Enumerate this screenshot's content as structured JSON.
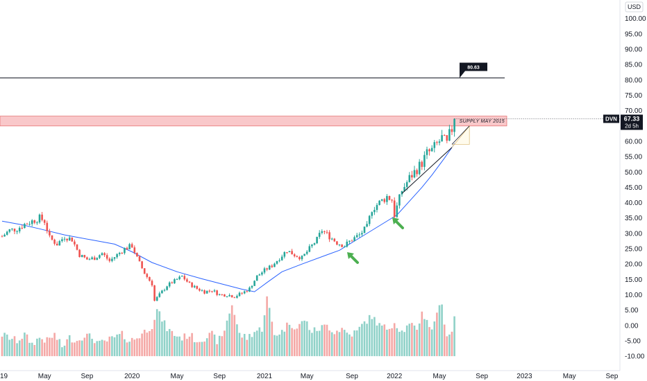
{
  "chart_data": {
    "type": "candlestick",
    "symbol": "DVN",
    "currency": "USD",
    "last_price": "67.33",
    "countdown": "2d 5h",
    "ylim": [
      -12,
      104
    ],
    "yticks": [
      "100.00",
      "95.00",
      "90.00",
      "85.00",
      "80.00",
      "75.00",
      "70.00",
      "65.00",
      "60.00",
      "55.00",
      "50.00",
      "45.00",
      "40.00",
      "35.00",
      "30.00",
      "25.00",
      "20.00",
      "15.00",
      "10.00",
      "5.00",
      "0.00",
      "-5.00",
      "-10.00"
    ],
    "ytick_values": [
      100,
      95,
      90,
      85,
      80,
      75,
      70,
      65,
      60,
      55,
      50,
      45,
      40,
      35,
      30,
      25,
      20,
      15,
      10,
      5,
      0,
      -5,
      -10
    ],
    "xticks": [
      {
        "label": "19",
        "week": 0
      },
      {
        "label": "May",
        "week": 17
      },
      {
        "label": "Sep",
        "week": 34
      },
      {
        "label": "2020",
        "week": 52
      },
      {
        "label": "May",
        "week": 70
      },
      {
        "label": "Sep",
        "week": 87
      },
      {
        "label": "2021",
        "week": 105
      },
      {
        "label": "May",
        "week": 122
      },
      {
        "label": "Sep",
        "week": 140
      },
      {
        "label": "2022",
        "week": 157
      },
      {
        "label": "May",
        "week": 175
      },
      {
        "label": "Sep",
        "week": 192
      },
      {
        "label": "2023",
        "week": 209
      },
      {
        "label": "May",
        "week": 227
      },
      {
        "label": "Sep",
        "week": 244
      }
    ],
    "resistance": {
      "price": 80.63,
      "label": "80.63"
    },
    "supply_zone": {
      "low": 65,
      "high": 68.2,
      "label": "SUPPLY MAY 2015"
    },
    "moving_average": [
      [
        0,
        34
      ],
      [
        8,
        32.8
      ],
      [
        15,
        31.5
      ],
      [
        25,
        29.5
      ],
      [
        35,
        28
      ],
      [
        45,
        26.5
      ],
      [
        52,
        24
      ],
      [
        60,
        20.5
      ],
      [
        70,
        17.5
      ],
      [
        80,
        15.2
      ],
      [
        88,
        13.5
      ],
      [
        96,
        11.8
      ],
      [
        101,
        11
      ],
      [
        106,
        14
      ],
      [
        112,
        17.5
      ],
      [
        120,
        20
      ],
      [
        130,
        23
      ],
      [
        135,
        24.5
      ],
      [
        140,
        27
      ],
      [
        148,
        31
      ],
      [
        155,
        34.5
      ],
      [
        158,
        36
      ],
      [
        163,
        40.5
      ],
      [
        168,
        45
      ],
      [
        172,
        49
      ],
      [
        177,
        54.5
      ],
      [
        180,
        58
      ],
      [
        181,
        59.3
      ]
    ],
    "price_path": [
      [
        0,
        29
      ],
      [
        3,
        31
      ],
      [
        6,
        31.5
      ],
      [
        9,
        33
      ],
      [
        12,
        34
      ],
      [
        15,
        35
      ],
      [
        17,
        34
      ],
      [
        19,
        28.5
      ],
      [
        22,
        26.5
      ],
      [
        25,
        29
      ],
      [
        28,
        28
      ],
      [
        31,
        23
      ],
      [
        34,
        21.5
      ],
      [
        37,
        22
      ],
      [
        40,
        23.5
      ],
      [
        43,
        21
      ],
      [
        46,
        23
      ],
      [
        49,
        25
      ],
      [
        52,
        26
      ],
      [
        54,
        22
      ],
      [
        57,
        17
      ],
      [
        60,
        13.5
      ],
      [
        61,
        8
      ],
      [
        63,
        10
      ],
      [
        66,
        13
      ],
      [
        69,
        14.5
      ],
      [
        72,
        16
      ],
      [
        75,
        13.5
      ],
      [
        78,
        12
      ],
      [
        81,
        11
      ],
      [
        84,
        11.5
      ],
      [
        87,
        10
      ],
      [
        90,
        10
      ],
      [
        93,
        9.5
      ],
      [
        96,
        10.5
      ],
      [
        99,
        12
      ],
      [
        102,
        16
      ],
      [
        105,
        18
      ],
      [
        108,
        19.5
      ],
      [
        111,
        22
      ],
      [
        114,
        24.5
      ],
      [
        117,
        23
      ],
      [
        120,
        22
      ],
      [
        123,
        25
      ],
      [
        126,
        28
      ],
      [
        128,
        31
      ],
      [
        131,
        29
      ],
      [
        134,
        27
      ],
      [
        137,
        26
      ],
      [
        140,
        28
      ],
      [
        143,
        29.5
      ],
      [
        146,
        32
      ],
      [
        148,
        38
      ],
      [
        151,
        40
      ],
      [
        154,
        42
      ],
      [
        156,
        41
      ],
      [
        157,
        36
      ],
      [
        160,
        44
      ],
      [
        163,
        48
      ],
      [
        166,
        51
      ],
      [
        168,
        53
      ],
      [
        170,
        56
      ],
      [
        172,
        57
      ],
      [
        174,
        59
      ],
      [
        176,
        61
      ],
      [
        178,
        59
      ],
      [
        179,
        62
      ],
      [
        180,
        64
      ],
      [
        181,
        67.33
      ]
    ],
    "volume_baseline": -10,
    "volume": [
      {
        "w": 0,
        "v": -3
      },
      {
        "w": 3,
        "v": -4
      },
      {
        "w": 6,
        "v": -5
      },
      {
        "w": 9,
        "v": -3
      },
      {
        "w": 12,
        "v": -6
      },
      {
        "w": 15,
        "v": -4
      },
      {
        "w": 18,
        "v": -5
      },
      {
        "w": 21,
        "v": -3
      },
      {
        "w": 24,
        "v": -7
      },
      {
        "w": 27,
        "v": -4
      },
      {
        "w": 30,
        "v": -5
      },
      {
        "w": 33,
        "v": -3
      },
      {
        "w": 36,
        "v": -4
      },
      {
        "w": 39,
        "v": -6
      },
      {
        "w": 42,
        "v": -5
      },
      {
        "w": 45,
        "v": -4
      },
      {
        "w": 48,
        "v": -3
      },
      {
        "w": 51,
        "v": -5
      },
      {
        "w": 54,
        "v": -4
      },
      {
        "w": 57,
        "v": -2
      },
      {
        "w": 60,
        "v": 0
      },
      {
        "w": 62,
        "v": 5
      },
      {
        "w": 64,
        "v": 2
      },
      {
        "w": 66,
        "v": -1
      },
      {
        "w": 69,
        "v": -3
      },
      {
        "w": 72,
        "v": -4
      },
      {
        "w": 75,
        "v": -3
      },
      {
        "w": 78,
        "v": -5
      },
      {
        "w": 81,
        "v": -4
      },
      {
        "w": 84,
        "v": -3
      },
      {
        "w": 86,
        "v": -5
      },
      {
        "w": 88,
        "v": -4
      },
      {
        "w": 92,
        "v": 7
      },
      {
        "w": 95,
        "v": -3
      },
      {
        "w": 98,
        "v": -4
      },
      {
        "w": 101,
        "v": -2
      },
      {
        "w": 104,
        "v": -1
      },
      {
        "w": 106,
        "v": 9
      },
      {
        "w": 109,
        "v": -3
      },
      {
        "w": 112,
        "v": -2
      },
      {
        "w": 115,
        "v": 1
      },
      {
        "w": 118,
        "v": -1
      },
      {
        "w": 121,
        "v": 2
      },
      {
        "w": 124,
        "v": -2
      },
      {
        "w": 127,
        "v": -1
      },
      {
        "w": 130,
        "v": 0
      },
      {
        "w": 133,
        "v": -2
      },
      {
        "w": 136,
        "v": -1
      },
      {
        "w": 139,
        "v": -3
      },
      {
        "w": 142,
        "v": -2
      },
      {
        "w": 145,
        "v": 1
      },
      {
        "w": 148,
        "v": 3
      },
      {
        "w": 151,
        "v": 0
      },
      {
        "w": 154,
        "v": -1
      },
      {
        "w": 157,
        "v": 1
      },
      {
        "w": 160,
        "v": -2
      },
      {
        "w": 163,
        "v": 0
      },
      {
        "w": 166,
        "v": -1
      },
      {
        "w": 168,
        "v": 4
      },
      {
        "w": 170,
        "v": 2
      },
      {
        "w": 172,
        "v": -2
      },
      {
        "w": 174,
        "v": 5
      },
      {
        "w": 176,
        "v": 6
      },
      {
        "w": 178,
        "v": -3
      },
      {
        "w": 180,
        "v": -2
      },
      {
        "w": 181,
        "v": 3
      }
    ]
  }
}
